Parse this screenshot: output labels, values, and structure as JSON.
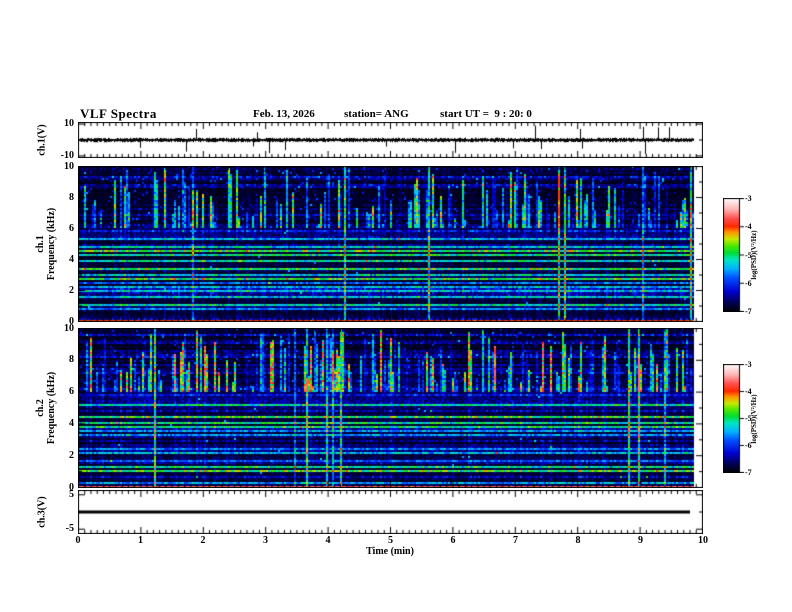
{
  "header": {
    "title": "VLF Spectra",
    "date": "Feb. 13, 2026",
    "station": "station= ANG",
    "start_ut": "start UT =  9 : 20: 0"
  },
  "x_axis": {
    "label": "Time (min)",
    "range": [
      0,
      10
    ],
    "tick_labels": [
      "0",
      "1",
      "2",
      "3",
      "4",
      "5",
      "6",
      "7",
      "8",
      "9",
      "10"
    ],
    "minor_divisions_per_major": 10
  },
  "colorbar": {
    "label": "log(PSD)(V²/Hz)",
    "tick_labels": [
      "-3",
      "-4",
      "-5",
      "-6",
      "-7"
    ],
    "range": [
      -7,
      -3
    ]
  },
  "colormap_stops": [
    [
      0.0,
      "#000000"
    ],
    [
      0.08,
      "#000050"
    ],
    [
      0.18,
      "#0000d0"
    ],
    [
      0.3,
      "#0050ff"
    ],
    [
      0.38,
      "#00b4ff"
    ],
    [
      0.46,
      "#00e8c0"
    ],
    [
      0.52,
      "#00dc32"
    ],
    [
      0.58,
      "#50e800"
    ],
    [
      0.64,
      "#c8e800"
    ],
    [
      0.7,
      "#ff9600"
    ],
    [
      0.75,
      "#ff2800"
    ],
    [
      0.82,
      "#ff5050"
    ],
    [
      0.9,
      "#ffb4b4"
    ],
    [
      1.0,
      "#ffffff"
    ]
  ],
  "chart_data": [
    {
      "id": "ch1-waveform",
      "type": "line",
      "ylabel_lines": [
        "ch.1(V)"
      ],
      "ytick_labels": [
        "10",
        "-10"
      ],
      "ytick_values": [
        10,
        -10
      ],
      "yminor_values": [
        0
      ],
      "yrange": [
        -11,
        11
      ],
      "seed": 7,
      "noise_amp_v": 1.3,
      "spike_rate": 0.012,
      "spike_amp_v": 8,
      "note": "continuous broadband noise trace around 0 V with sparse impulsive spikes"
    },
    {
      "id": "ch1-spectrogram",
      "type": "heatmap",
      "ylabel_lines": [
        "ch.1",
        "Frequency (kHz)"
      ],
      "ytick_labels": [
        "10",
        "8",
        "6",
        "4",
        "2",
        "0"
      ],
      "ytick_values": [
        10,
        8,
        6,
        4,
        2,
        0
      ],
      "yminor_values": [
        9,
        7,
        5,
        3,
        1
      ],
      "yrange": [
        0,
        10
      ],
      "seed": 13,
      "vmax": 0.74,
      "streaks": {
        "threshold": 0.52,
        "gain": 0.6
      },
      "vline_count": 7,
      "hum_band_khz": 0.18,
      "bands": [
        [
          0.08,
          0.1,
          0.55
        ],
        [
          0.5,
          0.05,
          0.38
        ],
        [
          0.85,
          0.04,
          0.3
        ],
        [
          1.1,
          0.05,
          0.45
        ],
        [
          1.3,
          0.04,
          0.35
        ],
        [
          1.6,
          0.05,
          0.4
        ],
        [
          1.95,
          0.04,
          0.3
        ],
        [
          2.2,
          0.05,
          0.42
        ],
        [
          2.5,
          0.04,
          0.34
        ],
        [
          2.8,
          0.05,
          0.42
        ],
        [
          3.0,
          0.05,
          0.45
        ],
        [
          3.35,
          0.05,
          0.4
        ],
        [
          3.6,
          0.04,
          0.36
        ],
        [
          3.95,
          0.05,
          0.44
        ],
        [
          4.3,
          0.07,
          0.5
        ],
        [
          4.55,
          0.08,
          0.55
        ],
        [
          4.75,
          0.06,
          0.48
        ],
        [
          5.0,
          0.04,
          0.36
        ],
        [
          5.3,
          0.05,
          0.4
        ]
      ],
      "note": "dense blue/cyan sferic vertical streaks above 6 kHz; narrowband horizontal emission lines below 6 kHz, brightest cluster near 4.3-4.8 kHz"
    },
    {
      "id": "ch2-spectrogram",
      "type": "heatmap",
      "ylabel_lines": [
        "ch.2",
        "Frequency (kHz)"
      ],
      "ytick_labels": [
        "10",
        "8",
        "6",
        "4",
        "2",
        "0"
      ],
      "ytick_values": [
        10,
        8,
        6,
        4,
        2,
        0
      ],
      "yminor_values": [
        9,
        7,
        5,
        3,
        1
      ],
      "yrange": [
        0,
        10
      ],
      "seed": 29,
      "vmax": 0.84,
      "streaks": {
        "threshold": 0.4,
        "gain": 0.72
      },
      "vline_count": 9,
      "hum_band_khz": 0.18,
      "bands": [
        [
          0.08,
          0.1,
          0.52
        ],
        [
          0.3,
          0.05,
          0.4
        ],
        [
          1.05,
          0.06,
          0.55
        ],
        [
          1.35,
          0.05,
          0.45
        ],
        [
          1.7,
          0.04,
          0.3
        ],
        [
          2.2,
          0.05,
          0.42
        ],
        [
          2.45,
          0.04,
          0.36
        ],
        [
          2.75,
          0.05,
          0.44
        ],
        [
          3.0,
          0.05,
          0.42
        ],
        [
          3.3,
          0.04,
          0.36
        ],
        [
          3.55,
          0.04,
          0.32
        ],
        [
          3.8,
          0.06,
          0.5
        ],
        [
          4.05,
          0.06,
          0.52
        ],
        [
          4.4,
          0.06,
          0.48
        ],
        [
          4.75,
          0.04,
          0.34
        ],
        [
          5.2,
          0.05,
          0.44
        ],
        [
          5.5,
          0.04,
          0.36
        ]
      ],
      "note": "stronger green/orange sferic vertical streaks above 6 kHz; bright horizontal lines near 1.05, 3.8-4.4 and 5.2 kHz"
    },
    {
      "id": "ch3-waveform",
      "type": "flatline",
      "ylabel_lines": [
        "ch.3(V)"
      ],
      "ytick_labels": [
        "5",
        "-5"
      ],
      "ytick_values": [
        5,
        -5
      ],
      "yminor_values": [
        0
      ],
      "yrange": [
        -6.25,
        6.25
      ],
      "value_v": 0,
      "note": "flat thick trace at 0 V (no signal)"
    }
  ]
}
